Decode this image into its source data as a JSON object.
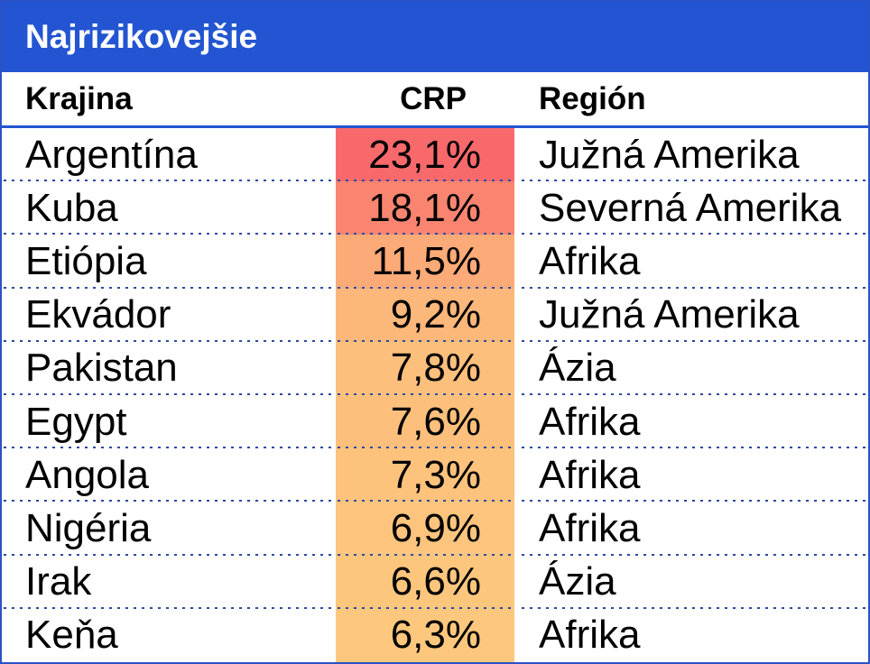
{
  "title": "Najrizikovejšie",
  "colors": {
    "title_bar_bg": "#2355D2",
    "title_text": "#FFFFFF",
    "frame_border": "#2A52C6",
    "header_rule": "#2355D2",
    "row_dot_separator": "#2B4AA3",
    "body_text": "#000000",
    "crp_scale_max_red": "#F8696B",
    "crp_scale_min_yellow": "#FDC87D"
  },
  "chart_data": {
    "type": "table",
    "title": "Najrizikovejšie",
    "columns": [
      {
        "key": "country",
        "label": "Krajina"
      },
      {
        "key": "crp",
        "label": "CRP"
      },
      {
        "key": "region",
        "label": "Región"
      }
    ],
    "rows": [
      {
        "country": "Argentína",
        "crp": "23,1%",
        "crp_value": 23.1,
        "region": "Južná Amerika",
        "crp_cell_color": "#F8696B"
      },
      {
        "country": "Kuba",
        "crp": "18,1%",
        "crp_value": 18.1,
        "region": "Severná Amerika",
        "crp_cell_color": "#F98570"
      },
      {
        "country": "Etiópia",
        "crp": "11,5%",
        "crp_value": 11.5,
        "region": "Afrika",
        "crp_cell_color": "#FCAA78"
      },
      {
        "country": "Ekvádor",
        "crp": "9,2%",
        "crp_value": 9.2,
        "region": "Južná Amerika",
        "crp_cell_color": "#FCB77A"
      },
      {
        "country": "Pakistan",
        "crp": "7,8%",
        "crp_value": 7.8,
        "region": "Ázia",
        "crp_cell_color": "#FDBF7C"
      },
      {
        "country": "Egypt",
        "crp": "7,6%",
        "crp_value": 7.6,
        "region": "Afrika",
        "crp_cell_color": "#FDC07C"
      },
      {
        "country": "Angola",
        "crp": "7,3%",
        "crp_value": 7.3,
        "region": "Afrika",
        "crp_cell_color": "#FDC27C"
      },
      {
        "country": "Nigéria",
        "crp": "6,9%",
        "crp_value": 6.9,
        "region": "Afrika",
        "crp_cell_color": "#FDC47D"
      },
      {
        "country": "Irak",
        "crp": "6,6%",
        "crp_value": 6.6,
        "region": "Ázia",
        "crp_cell_color": "#FDC67D"
      },
      {
        "country": "Keňa",
        "crp": "6,3%",
        "crp_value": 6.3,
        "region": "Afrika",
        "crp_cell_color": "#FDC87D"
      }
    ]
  }
}
